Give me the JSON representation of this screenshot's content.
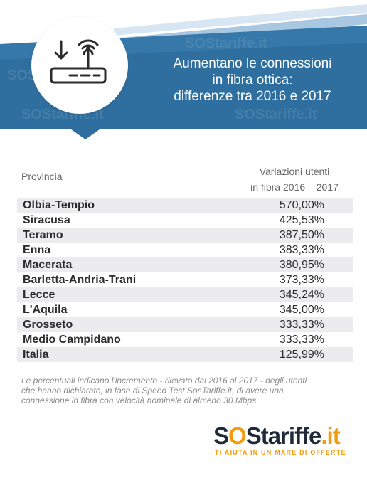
{
  "header": {
    "title_lines": [
      "Aumentano le connessioni",
      "in fibra ottica:",
      "differenze tra 2016 e 2017"
    ],
    "watermark": "SOStariffe.it",
    "icon": "router-icon",
    "colors": {
      "banner": "#2f6f9f",
      "banner_light": "#cfe0ee"
    }
  },
  "table": {
    "col_left": "Provincia",
    "col_right_lines": [
      "Variazioni utenti",
      "in fibra 2016 – 2017"
    ],
    "rows": [
      {
        "provincia": "Olbia-Tempio",
        "valore": "570,00%"
      },
      {
        "provincia": "Siracusa",
        "valore": "425,53%"
      },
      {
        "provincia": "Teramo",
        "valore": "387,50%"
      },
      {
        "provincia": "Enna",
        "valore": "383,33%"
      },
      {
        "provincia": "Macerata",
        "valore": "380,95%"
      },
      {
        "provincia": "Barletta-Andria-Trani",
        "valore": "373,33%"
      },
      {
        "provincia": "Lecce",
        "valore": "345,24%"
      },
      {
        "provincia": "L'Aquila",
        "valore": "345,00%"
      },
      {
        "provincia": "Grosseto",
        "valore": "333,33%"
      },
      {
        "provincia": "Medio Campidano",
        "valore": "333,33%"
      },
      {
        "provincia": "Italia",
        "valore": "125,99%"
      }
    ]
  },
  "footnote_lines": [
    "Le percentuali indicano l'incremento - rilevato dal 2016 al 2017 - degli utenti",
    "che hanno dichiarato, in fase di Speed Test SosTariffe.it, di avere una",
    "connessione in fibra con velocità nominale di almeno 30 Mbps."
  ],
  "logo": {
    "s1": "S",
    "o": "O",
    "s2": "S",
    "rest": "tariffe",
    "dot_it": ".it",
    "tagline": "TI AIUTA IN UN MARE DI OFFERTE"
  }
}
